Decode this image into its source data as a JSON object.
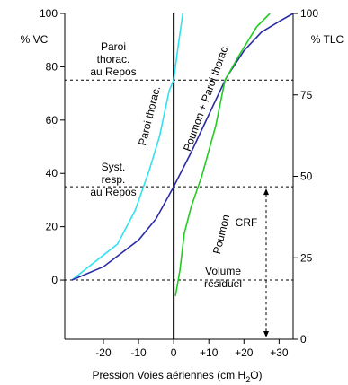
{
  "chart_data": {
    "type": "line",
    "xlabel": [
      "Pression Voies aériennes (cm H",
      "2",
      "O)"
    ],
    "ylabel": "% VC",
    "y2label": "% TLC",
    "xlim": [
      -31,
      34
    ],
    "xticks": [
      -20,
      -10,
      0,
      {
        "value": 10,
        "label": "+10"
      },
      {
        "value": 20,
        "label": "+20"
      },
      {
        "value": 30,
        "label": "+30"
      }
    ],
    "ylim": [
      -22.2,
      100
    ],
    "yticks": [
      0,
      20,
      40,
      60,
      80,
      100
    ],
    "y2lim": [
      0,
      100
    ],
    "y2ticks": [
      0,
      25,
      50,
      75,
      100
    ],
    "hlines": [
      75,
      35,
      0
    ],
    "series": [
      {
        "name": "Paroi thorac.",
        "color": "#33e0ee",
        "x": [
          -29,
          -16,
          -11,
          -7,
          -4,
          -1.3,
          0,
          1.3,
          2.6
        ],
        "values": [
          0,
          13.5,
          26,
          41,
          54,
          71,
          75,
          88,
          100
        ]
      },
      {
        "name": "Poumon + Paroi thorac.",
        "color": "#2b2ba6",
        "x": [
          -29,
          -20,
          -10,
          -5,
          0,
          5,
          10,
          15,
          20,
          25,
          30,
          34
        ],
        "values": [
          0,
          5,
          15,
          23,
          35,
          48,
          62,
          76,
          86,
          93,
          97,
          100
        ]
      },
      {
        "name": "Poumon",
        "color": "#22cc22",
        "x": [
          0.5,
          1.8,
          3,
          5,
          8,
          12,
          14.6,
          18.5,
          23.6,
          27.4
        ],
        "values": [
          -6,
          4,
          17.5,
          27.6,
          39,
          58,
          75,
          84,
          95,
          100
        ]
      }
    ],
    "annotations": [
      [
        "Paroi",
        "thorac.",
        "au Repos"
      ],
      [
        "Syst.",
        "resp.",
        "au Repos"
      ],
      [
        "Volume",
        "résiduel"
      ],
      [
        "CRF"
      ]
    ]
  }
}
